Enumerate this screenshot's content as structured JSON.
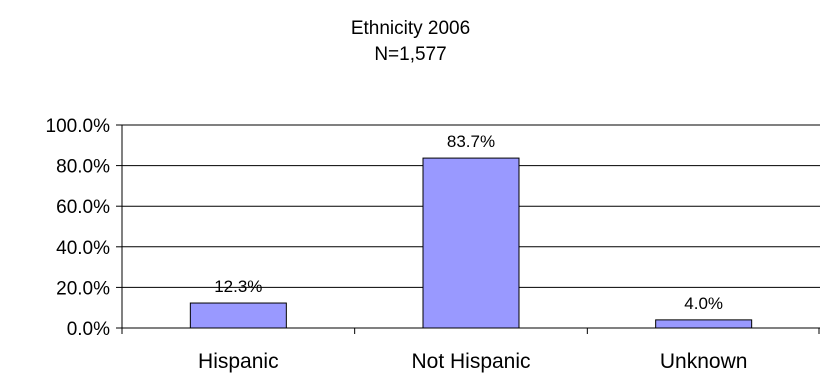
{
  "chart_data": {
    "type": "bar",
    "title": "Ethnicity 2006",
    "subtitle": "N=1,577",
    "categories": [
      "Hispanic",
      "Not Hispanic",
      "Unknown"
    ],
    "values": [
      12.3,
      83.7,
      4.0
    ],
    "value_labels": [
      "12.3%",
      "83.7%",
      "4.0%"
    ],
    "ylim": [
      0,
      100
    ],
    "yticks": [
      0,
      20,
      40,
      60,
      80,
      100
    ],
    "ytick_labels": [
      "0.0%",
      "20.0%",
      "40.0%",
      "60.0%",
      "80.0%",
      "100.0%"
    ],
    "xlabel": "",
    "ylabel": "",
    "grid": true,
    "legend": "none",
    "bar_color": "#9999ff",
    "bar_stroke": "#000000"
  }
}
